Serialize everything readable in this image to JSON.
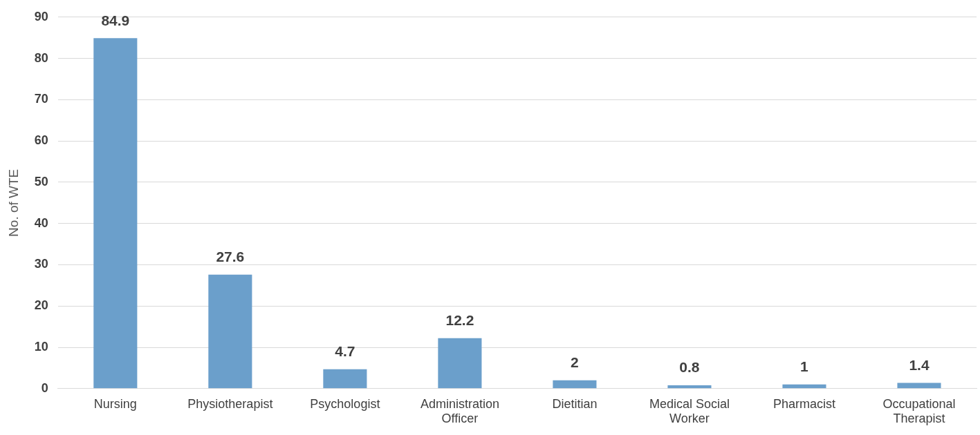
{
  "chart_data": {
    "type": "bar",
    "ylabel": "No. of WTE",
    "categories": [
      "Nursing",
      "Physiotherapist",
      "Psychologist",
      "Administration Officer",
      "Dietitian",
      "Medical Social Worker",
      "Pharmacist",
      "Occupational Therapist"
    ],
    "values": [
      84.9,
      27.6,
      4.7,
      12.2,
      2,
      0.8,
      1,
      1.4
    ],
    "color": "#6b9fcb",
    "ylim": [
      0,
      90
    ],
    "yticks": [
      0,
      10,
      20,
      30,
      40,
      50,
      60,
      70,
      80,
      90
    ],
    "grid": "y",
    "data_labels": true
  }
}
